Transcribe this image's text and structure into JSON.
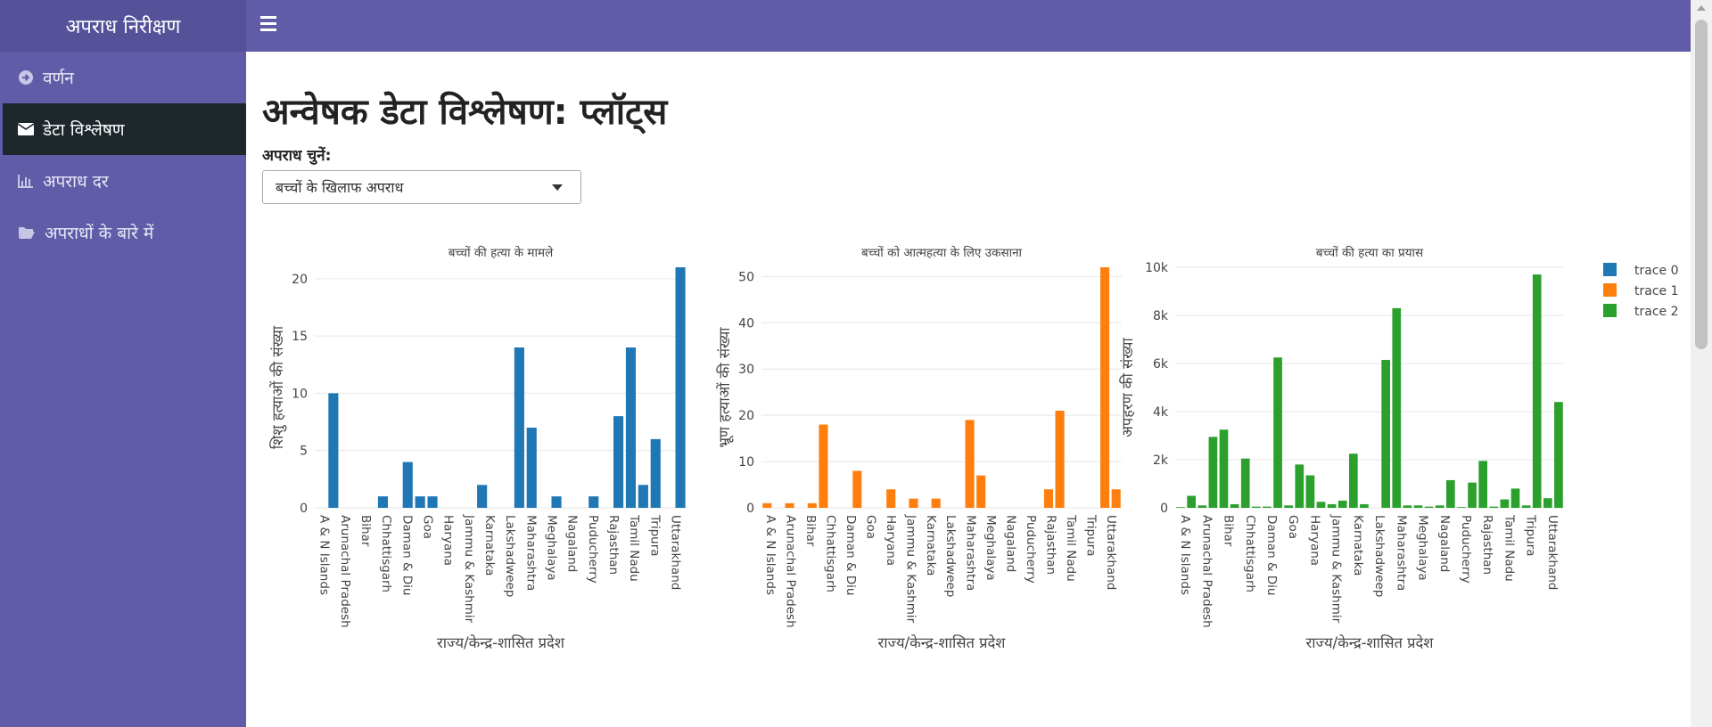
{
  "app": {
    "brand": "अपराध निरीक्षण"
  },
  "sidebar": {
    "items": [
      {
        "label": "वर्णन",
        "icon": "arrow-circle-right-icon",
        "active": false
      },
      {
        "label": "डेटा विश्लेषण",
        "icon": "envelope-icon",
        "active": true
      },
      {
        "label": "अपराध दर",
        "icon": "bar-chart-icon",
        "active": false
      },
      {
        "label": "अपराधों के बारे में",
        "icon": "folder-open-icon",
        "active": false
      }
    ]
  },
  "main": {
    "title": "अन्वेषक डेटा विश्लेषण: प्लॉट्स",
    "select_label": "अपराध चुनें:",
    "selected_crime": "बच्चों के खिलाफ अपराध"
  },
  "colors": {
    "trace0": "#1f77b4",
    "trace1": "#ff7f0e",
    "trace2": "#2ca02c",
    "sidebar": "#605ca8"
  },
  "chart_data": [
    {
      "type": "bar",
      "title": "बच्चों की हत्या के मामले",
      "xlabel": "राज्य/केन्द्र-शासित प्रदेश",
      "ylabel": "शिशु हत्याओं की संख्या",
      "series_name": "trace 0",
      "ylim": [
        0,
        21
      ],
      "yticks": [
        0,
        5,
        10,
        15,
        20
      ],
      "ytick_labels": [
        "0",
        "5",
        "10",
        "15",
        "20"
      ],
      "tick_labels": [
        "A & N Islands",
        "Arunachal Pradesh",
        "Bihar",
        "Chhattisgarh",
        "Daman & Diu",
        "Goa",
        "Haryana",
        "Jammu & Kashmir",
        "Karnataka",
        "Lakshadweep",
        "Maharashtra",
        "Meghalaya",
        "Nagaland",
        "Puducherry",
        "Rajasthan",
        "Tamil Nadu",
        "Tripura",
        "Uttarakhand"
      ],
      "values": [
        0,
        10,
        0,
        0,
        0,
        1,
        0,
        4,
        1,
        1,
        0,
        0,
        0,
        2,
        0,
        0,
        14,
        7,
        0,
        1,
        0,
        0,
        1,
        0,
        8,
        14,
        2,
        6,
        0,
        21
      ]
    },
    {
      "type": "bar",
      "title": "बच्चों को आत्महत्या के लिए उकसाना",
      "xlabel": "राज्य/केन्द्र-शासित प्रदेश",
      "ylabel": "भ्रूण हत्याओं की संख्या",
      "series_name": "trace 1",
      "ylim": [
        0,
        52
      ],
      "yticks": [
        0,
        10,
        20,
        30,
        40,
        50
      ],
      "ytick_labels": [
        "0",
        "10",
        "20",
        "30",
        "40",
        "50"
      ],
      "tick_labels": [
        "A & N Islands",
        "Arunachal Pradesh",
        "Bihar",
        "Chhattisgarh",
        "Daman & Diu",
        "Goa",
        "Haryana",
        "Jammu & Kashmir",
        "Karnataka",
        "Lakshadweep",
        "Maharashtra",
        "Meghalaya",
        "Nagaland",
        "Puducherry",
        "Rajasthan",
        "Tamil Nadu",
        "Tripura",
        "Uttarakhand"
      ],
      "values": [
        1,
        0,
        1,
        0,
        1,
        18,
        0,
        0,
        8,
        0,
        0,
        4,
        0,
        2,
        0,
        2,
        0,
        0,
        19,
        7,
        0,
        0,
        0,
        0,
        0,
        4,
        21,
        0,
        0,
        0,
        52,
        4
      ]
    },
    {
      "type": "bar",
      "title": "बच्चों की हत्या का प्रयास",
      "xlabel": "राज्य/केन्द्र-शासित प्रदेश",
      "ylabel": "अपहरण की संख्या",
      "series_name": "trace 2",
      "ylim": [
        0,
        10000
      ],
      "yticks": [
        0,
        2000,
        4000,
        6000,
        8000,
        10000
      ],
      "ytick_labels": [
        "0",
        "2k",
        "4k",
        "6k",
        "8k",
        "10k"
      ],
      "tick_labels": [
        "A & N Islands",
        "Arunachal Pradesh",
        "Bihar",
        "Chhattisgarh",
        "Daman & Diu",
        "Goa",
        "Haryana",
        "Jammu & Kashmir",
        "Karnataka",
        "Lakshadweep",
        "Maharashtra",
        "Meghalaya",
        "Nagaland",
        "Puducherry",
        "Rajasthan",
        "Tamil Nadu",
        "Tripura",
        "Uttarakhand"
      ],
      "values": [
        30,
        500,
        100,
        2950,
        3250,
        150,
        2050,
        50,
        50,
        6250,
        100,
        1800,
        1350,
        250,
        150,
        300,
        2250,
        150,
        0,
        6150,
        8300,
        100,
        100,
        50,
        100,
        1150,
        30,
        1050,
        1950,
        50,
        350,
        800,
        100,
        9700,
        400,
        4400
      ]
    }
  ],
  "legend": {
    "placement": "right",
    "entries": [
      {
        "name": "trace 0",
        "color": "#1f77b4"
      },
      {
        "name": "trace 1",
        "color": "#ff7f0e"
      },
      {
        "name": "trace 2",
        "color": "#2ca02c"
      }
    ]
  }
}
